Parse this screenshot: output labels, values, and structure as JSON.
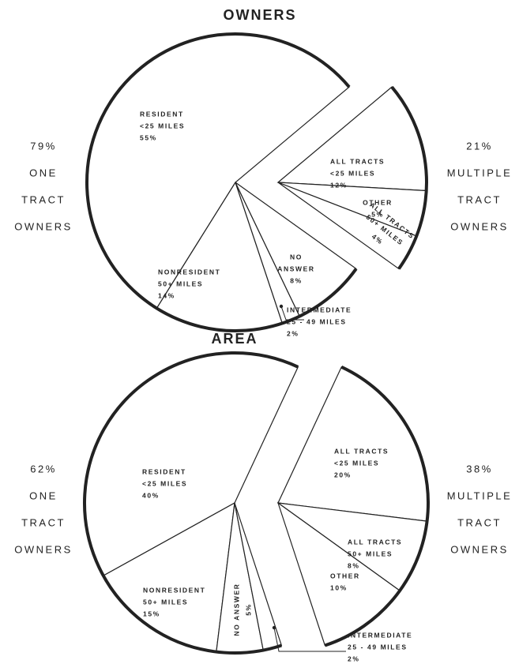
{
  "chart_data": [
    {
      "type": "pie",
      "title": "OWNERS",
      "groups": [
        {
          "total": 79,
          "total_label": "79%",
          "name": [
            "ONE",
            "TRACT",
            "OWNERS"
          ],
          "categories": [
            [
              "RESIDENT",
              "<25 MILES"
            ],
            [
              "NONRESIDENT",
              "50+ MILES"
            ],
            [
              "INTERMEDIATE",
              "25 - 49 MILES"
            ],
            [
              "NO",
              "ANSWER"
            ]
          ],
          "values": [
            55,
            14,
            2,
            8
          ],
          "value_labels": [
            "55%",
            "14%",
            "2%",
            "8%"
          ]
        },
        {
          "total": 21,
          "total_label": "21%",
          "name": [
            "MULTIPLE",
            "TRACT",
            "OWNERS"
          ],
          "categories": [
            [
              "ALL TRACTS",
              "<25 MILES"
            ],
            [
              "OTHER"
            ],
            [
              "ALL TRACTS",
              "50+ MILES"
            ]
          ],
          "values": [
            12,
            5,
            4
          ],
          "value_labels": [
            "12%",
            "5%",
            "4%"
          ]
        }
      ]
    },
    {
      "type": "pie",
      "title": "AREA",
      "groups": [
        {
          "total": 62,
          "total_label": "62%",
          "name": [
            "ONE",
            "TRACT",
            "OWNERS"
          ],
          "categories": [
            [
              "RESIDENT",
              "<25 MILES"
            ],
            [
              "NONRESIDENT",
              "50+ MILES"
            ],
            [
              "NO ANSWER"
            ],
            [
              "INTERMEDIATE",
              "25 - 49 MILES"
            ]
          ],
          "values": [
            40,
            15,
            5,
            2
          ],
          "value_labels": [
            "40%",
            "15%",
            "5%",
            "2%"
          ]
        },
        {
          "total": 38,
          "total_label": "38%",
          "name": [
            "MULTIPLE",
            "TRACT",
            "OWNERS"
          ],
          "categories": [
            [
              "ALL TRACTS",
              "<25 MILES"
            ],
            [
              "ALL TRACTS",
              "50+ MILES"
            ],
            [
              "OTHER"
            ]
          ],
          "values": [
            20,
            8,
            10
          ],
          "value_labels": [
            "20%",
            "8%",
            "10%"
          ]
        }
      ]
    }
  ]
}
